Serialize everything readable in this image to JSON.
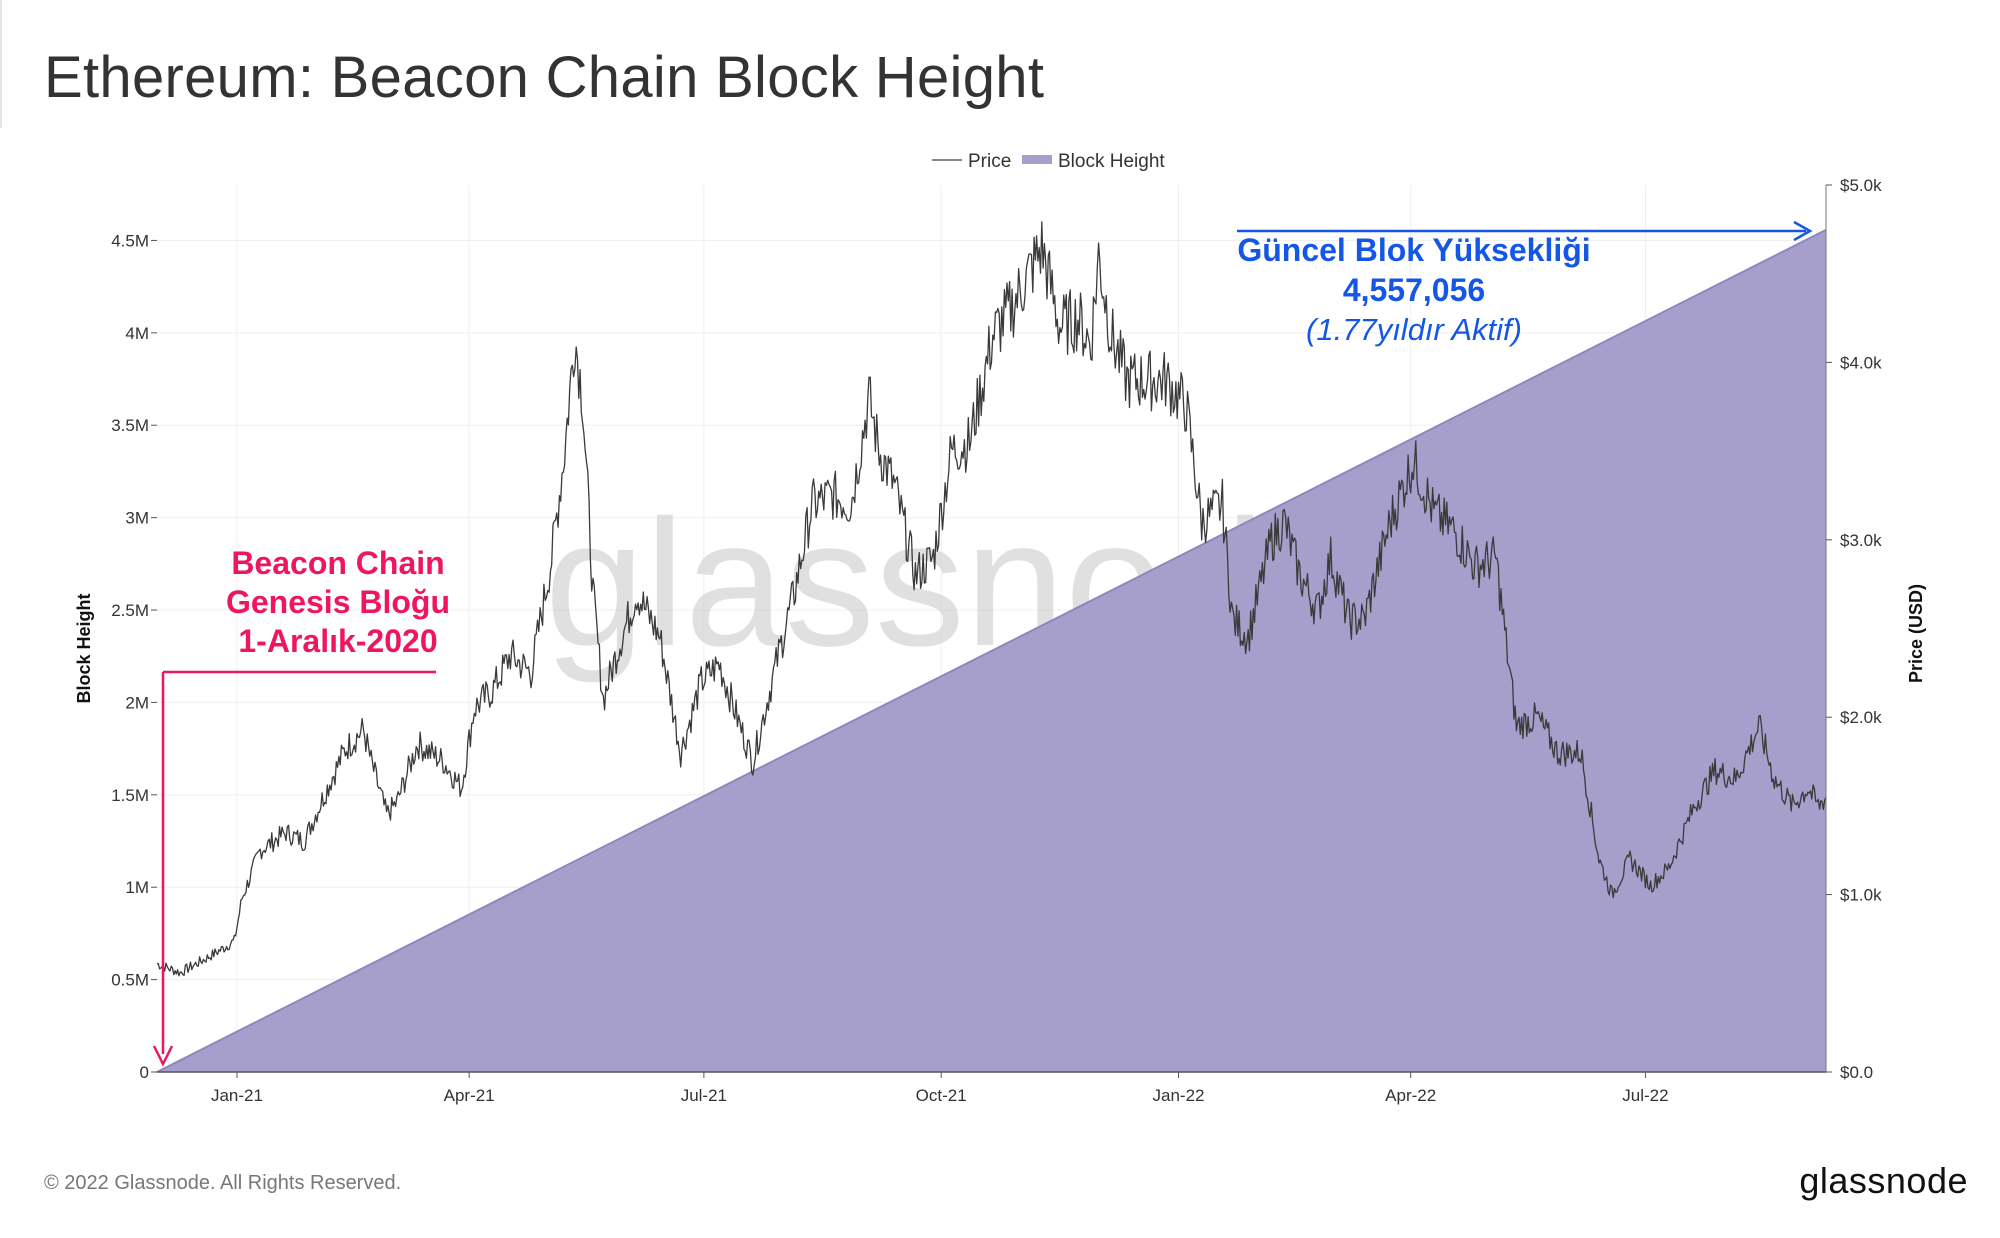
{
  "title": "Ethereum: Beacon Chain Block Height",
  "footer": {
    "copyright": "© 2022 Glassnode. All Rights Reserved.",
    "logo": "glassnode"
  },
  "watermark": "glassnode",
  "colors": {
    "area": "#a79fcb",
    "area_line": "#8f86bf",
    "price": "#3a3a3a",
    "pink": "#ee1661",
    "blue": "#1457e6"
  },
  "annotations": {
    "genesis": {
      "line1": "Beacon Chain",
      "line2": "Genesis Bloğu",
      "line3": "1-Aralık-2020"
    },
    "current": {
      "line1": "Güncel Blok Yüksekliği",
      "line2": "4,557,056",
      "line3": "(1.77yıldır Aktif)"
    }
  },
  "chart_data": {
    "type": "area",
    "title": "Ethereum: Beacon Chain Block Height",
    "legend": {
      "position": "top-center",
      "items": [
        {
          "name": "Price",
          "style": "line"
        },
        {
          "name": "Block Height",
          "style": "area"
        }
      ]
    },
    "x_ticks": [
      "Jan-21",
      "Apr-21",
      "Jul-21",
      "Oct-21",
      "Jan-22",
      "Apr-22",
      "Jul-22"
    ],
    "x_tick_dates": [
      "2021-01-01",
      "2021-04-01",
      "2021-07-01",
      "2021-10-01",
      "2022-01-01",
      "2022-04-01",
      "2022-07-01"
    ],
    "x_range": [
      "2020-12-01",
      "2022-09-09"
    ],
    "y_left": {
      "label": "Block Height",
      "range": [
        0,
        4800000
      ],
      "ticks": [
        "0",
        "0.5M",
        "1M",
        "1.5M",
        "2M",
        "2.5M",
        "3M",
        "3.5M",
        "4M",
        "4.5M"
      ],
      "tick_values": [
        0,
        500000,
        1000000,
        1500000,
        2000000,
        2500000,
        3000000,
        3500000,
        4000000,
        4500000
      ]
    },
    "y_right": {
      "label": "Price (USD)",
      "range": [
        0,
        5000
      ],
      "ticks": [
        "$0.0",
        "$1.0k",
        "$2.0k",
        "$3.0k",
        "$4.0k",
        "$5.0k"
      ],
      "tick_values": [
        0,
        1000,
        2000,
        3000,
        4000,
        5000
      ]
    },
    "grid": true,
    "series": [
      {
        "name": "Block Height",
        "axis": "left",
        "type": "area",
        "points": [
          [
            "2020-12-01",
            0
          ],
          [
            "2022-09-09",
            4557056
          ]
        ]
      },
      {
        "name": "Price",
        "axis": "right",
        "type": "line",
        "points": [
          [
            "2020-12-01",
            610
          ],
          [
            "2020-12-10",
            560
          ],
          [
            "2020-12-20",
            640
          ],
          [
            "2020-12-27",
            700
          ],
          [
            "2020-12-31",
            740
          ],
          [
            "2021-01-03",
            980
          ],
          [
            "2021-01-10",
            1250
          ],
          [
            "2021-01-20",
            1350
          ],
          [
            "2021-01-27",
            1300
          ],
          [
            "2021-02-05",
            1600
          ],
          [
            "2021-02-12",
            1820
          ],
          [
            "2021-02-19",
            1930
          ],
          [
            "2021-02-22",
            1750
          ],
          [
            "2021-02-28",
            1450
          ],
          [
            "2021-03-04",
            1520
          ],
          [
            "2021-03-12",
            1850
          ],
          [
            "2021-03-22",
            1750
          ],
          [
            "2021-03-29",
            1600
          ],
          [
            "2021-04-03",
            2050
          ],
          [
            "2021-04-10",
            2150
          ],
          [
            "2021-04-17",
            2350
          ],
          [
            "2021-04-25",
            2250
          ],
          [
            "2021-05-03",
            2900
          ],
          [
            "2021-05-08",
            3500
          ],
          [
            "2021-05-12",
            4150
          ],
          [
            "2021-05-15",
            3800
          ],
          [
            "2021-05-19",
            2700
          ],
          [
            "2021-05-23",
            2100
          ],
          [
            "2021-05-29",
            2400
          ],
          [
            "2021-06-05",
            2700
          ],
          [
            "2021-06-14",
            2450
          ],
          [
            "2021-06-22",
            1800
          ],
          [
            "2021-06-30",
            2200
          ],
          [
            "2021-07-07",
            2300
          ],
          [
            "2021-07-15",
            1950
          ],
          [
            "2021-07-20",
            1750
          ],
          [
            "2021-07-29",
            2300
          ],
          [
            "2021-08-05",
            2700
          ],
          [
            "2021-08-12",
            3200
          ],
          [
            "2021-08-20",
            3250
          ],
          [
            "2021-08-27",
            3200
          ],
          [
            "2021-09-03",
            3800
          ],
          [
            "2021-09-07",
            3500
          ],
          [
            "2021-09-13",
            3300
          ],
          [
            "2021-09-21",
            2800
          ],
          [
            "2021-09-28",
            2900
          ],
          [
            "2021-10-05",
            3500
          ],
          [
            "2021-10-12",
            3550
          ],
          [
            "2021-10-21",
            4150
          ],
          [
            "2021-10-28",
            4300
          ],
          [
            "2021-11-04",
            4500
          ],
          [
            "2021-11-09",
            4650
          ],
          [
            "2021-11-16",
            4200
          ],
          [
            "2021-11-23",
            4250
          ],
          [
            "2021-11-28",
            4100
          ],
          [
            "2021-12-01",
            4600
          ],
          [
            "2021-12-06",
            4150
          ],
          [
            "2021-12-12",
            3900
          ],
          [
            "2021-12-20",
            3900
          ],
          [
            "2021-12-27",
            3900
          ],
          [
            "2022-01-04",
            3750
          ],
          [
            "2022-01-10",
            3100
          ],
          [
            "2022-01-18",
            3200
          ],
          [
            "2022-01-22",
            2550
          ],
          [
            "2022-01-28",
            2450
          ],
          [
            "2022-02-06",
            3000
          ],
          [
            "2022-02-11",
            3100
          ],
          [
            "2022-02-17",
            2800
          ],
          [
            "2022-02-24",
            2600
          ],
          [
            "2022-03-01",
            2900
          ],
          [
            "2022-03-08",
            2550
          ],
          [
            "2022-03-14",
            2550
          ],
          [
            "2022-03-24",
            3100
          ],
          [
            "2022-04-02",
            3450
          ],
          [
            "2022-04-10",
            3150
          ],
          [
            "2022-04-18",
            3050
          ],
          [
            "2022-04-26",
            2850
          ],
          [
            "2022-05-04",
            2900
          ],
          [
            "2022-05-09",
            2300
          ],
          [
            "2022-05-12",
            1950
          ],
          [
            "2022-05-20",
            2000
          ],
          [
            "2022-05-28",
            1800
          ],
          [
            "2022-06-06",
            1800
          ],
          [
            "2022-06-13",
            1200
          ],
          [
            "2022-06-18",
            1000
          ],
          [
            "2022-06-25",
            1200
          ],
          [
            "2022-07-03",
            1050
          ],
          [
            "2022-07-10",
            1150
          ],
          [
            "2022-07-20",
            1500
          ],
          [
            "2022-07-28",
            1700
          ],
          [
            "2022-08-05",
            1650
          ],
          [
            "2022-08-14",
            1950
          ],
          [
            "2022-08-20",
            1650
          ],
          [
            "2022-08-27",
            1500
          ],
          [
            "2022-09-02",
            1600
          ],
          [
            "2022-09-06",
            1500
          ],
          [
            "2022-09-09",
            1550
          ]
        ]
      }
    ]
  }
}
